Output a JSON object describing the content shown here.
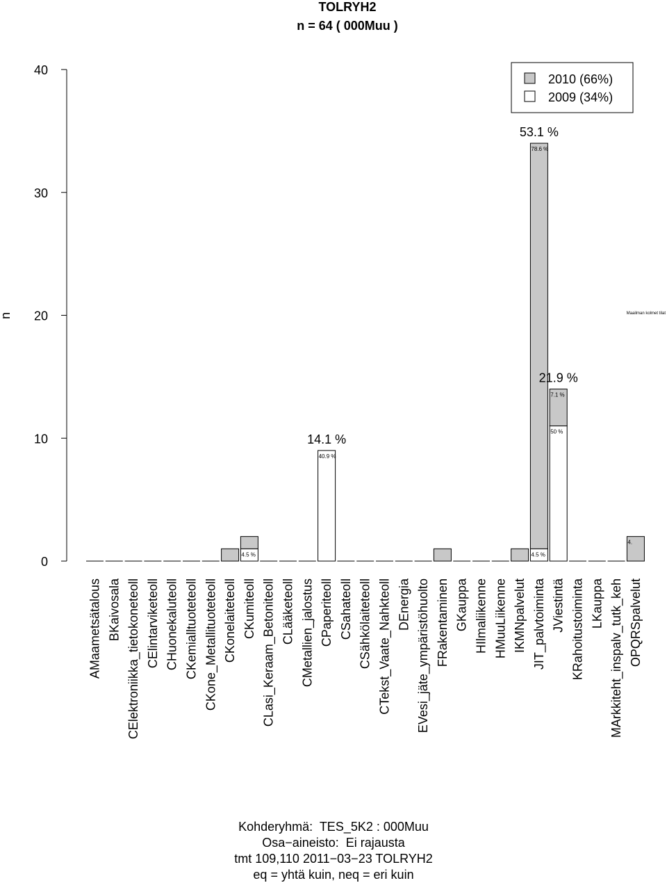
{
  "chart_data": {
    "type": "bar",
    "title": "TOLRYH2",
    "subtitle": "n = 64 ( 000Muu )",
    "ylabel": "n",
    "xlabel": "",
    "ylim": [
      0,
      40
    ],
    "yticks": [
      0,
      10,
      20,
      30,
      40
    ],
    "categories": [
      "AMaametsätalous",
      "BKaivosala",
      "CElektroniikka_tietokoneteoll",
      "CElintarviketeoll",
      "CHuonekaluteoll",
      "CKemialltuoteteoll",
      "CKone_Metallituoteteoll",
      "CKonelaiteteoll",
      "CKumiteoll",
      "CLasi_Keraam_Betoniteoll",
      "CLääketeoll",
      "CMetallien_jalostus",
      "CPaperiteoll",
      "CSahateoll",
      "CSähkölaiteteoll",
      "CTekst_Vaate_Nahkteoll",
      "DEnergia",
      "EVesi_jäte_ympäristöhuolto",
      "FRakentaminen",
      "GKauppa",
      "HIlmaliikenne",
      "HMuuLiikenne",
      "IKMNpalvelut",
      "JIT_palvtoiminta",
      "JViestintä",
      "KRahoitustoiminta",
      "LKauppa",
      "MArkkiteht_inspalv_tutk_keh",
      "OPQRSpalvelut"
    ],
    "series": [
      {
        "name": "2010 (66%)",
        "color": "#c8c8c8",
        "values": [
          0,
          0,
          0,
          0,
          0,
          0,
          0,
          1,
          1,
          0,
          0,
          0,
          0,
          0,
          0,
          0,
          0,
          0,
          1,
          0,
          0,
          0,
          1,
          33,
          3,
          0,
          0,
          0,
          2
        ]
      },
      {
        "name": "2009 (34%)",
        "color": "#ffffff",
        "values": [
          0,
          0,
          0,
          0,
          0,
          0,
          0,
          0,
          1,
          0,
          0,
          0,
          9,
          0,
          0,
          0,
          0,
          0,
          0,
          0,
          0,
          0,
          0,
          1,
          11,
          0,
          0,
          0,
          0
        ]
      }
    ],
    "totals_labels": [
      {
        "index": 12,
        "text": "14.1 %"
      },
      {
        "index": 23,
        "text": "53.1 %"
      },
      {
        "index": 24,
        "text": "21.9 %"
      }
    ],
    "small_labels": [
      {
        "index": 8,
        "series": 1,
        "text": "4.5 %"
      },
      {
        "index": 12,
        "series": 1,
        "text": "40.9 %"
      },
      {
        "index": 23,
        "series": 0,
        "text": "78.6 %"
      },
      {
        "index": 23,
        "series": 1,
        "text": "4.5 %"
      },
      {
        "index": 24,
        "series": 0,
        "text": "7.1 %"
      },
      {
        "index": 24,
        "series": 1,
        "text": "50 %"
      },
      {
        "index": 28,
        "series": 0,
        "text": "4."
      }
    ],
    "annotation": "Maailman kolmet tilat",
    "legend_position": "top-right",
    "grid": false
  },
  "footer": {
    "line1": "Kohderyhmä:  TES_5K2 : 000Muu",
    "line2": "Osa−aineisto:  Ei rajausta",
    "line3": "tmt 109,110 2011−03−23 TOLRYH2",
    "line4": "eq = yhtä kuin, neq = eri kuin"
  }
}
